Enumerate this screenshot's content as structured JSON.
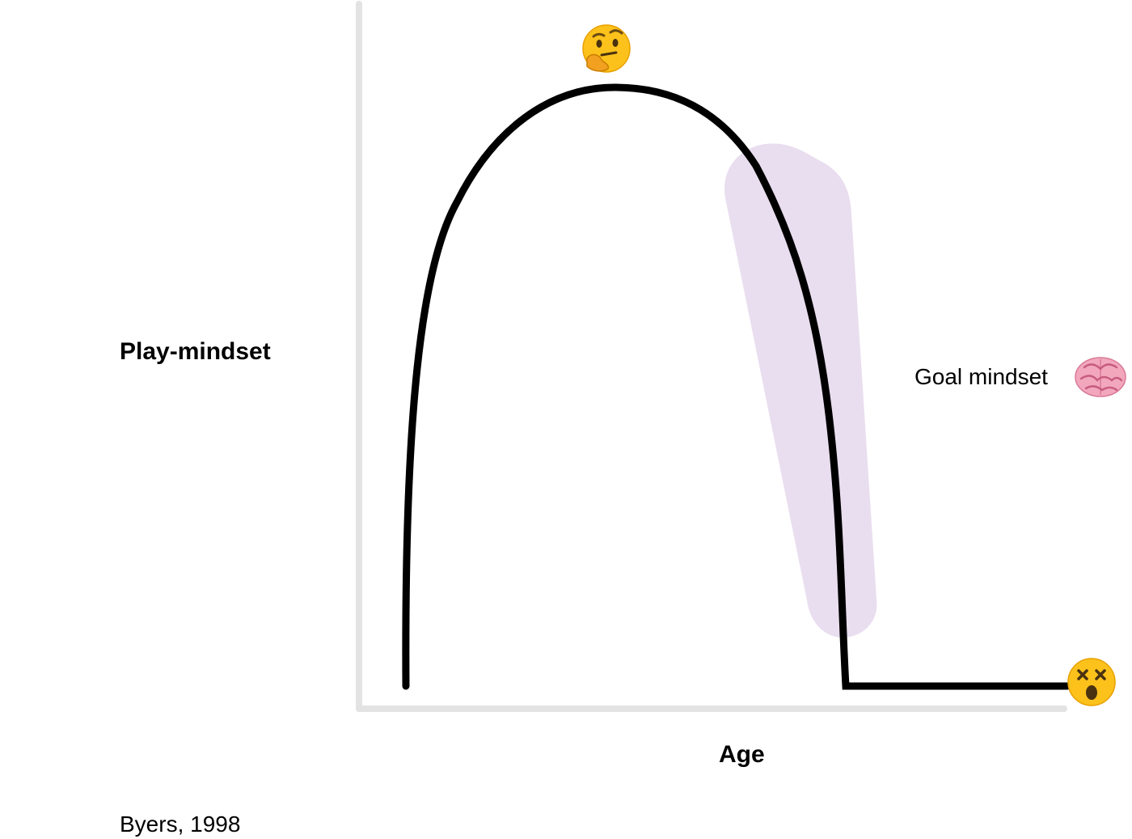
{
  "labels": {
    "y_axis": "Play-mindset",
    "x_axis": "Age",
    "goal": "Goal mindset",
    "citation": "Byers, 1998"
  },
  "icons": {
    "peak": "thinking-face-emoji",
    "goal": "brain-emoji",
    "end": "dizzy-face-emoji"
  },
  "colors": {
    "axis": "#e3e3e3",
    "curve": "#000000",
    "highlight": "#e8dcee",
    "emoji_skin": "#fcc21b",
    "brain": "#f2a7bd"
  }
}
